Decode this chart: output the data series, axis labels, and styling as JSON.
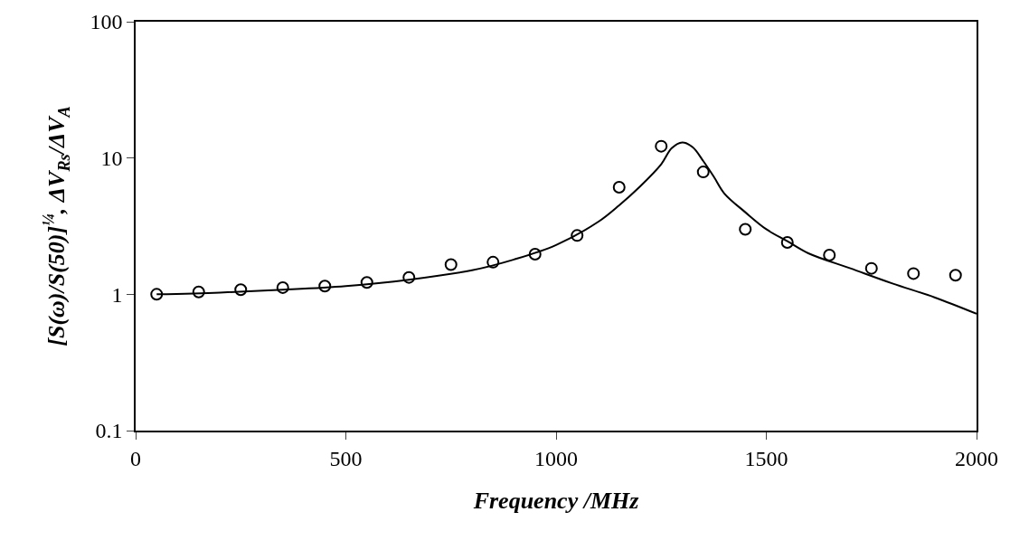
{
  "chart_data": {
    "type": "scatter",
    "xlabel": "Frequency /MHz",
    "ylabel": "[S(ω)/S(50)]$^{¼}$, ΔV$_{Rs}$/ΔV$_{A}$",
    "log": "y",
    "xlim": [
      0,
      2000
    ],
    "xticks": [
      0,
      500,
      1000,
      1500,
      2000
    ],
    "ylim": [
      0.1,
      100
    ],
    "yticks": [
      0.1,
      1,
      10,
      100
    ],
    "grid": false,
    "legend": false,
    "x": [
      50,
      150,
      250,
      350,
      450,
      550,
      650,
      750,
      850,
      950,
      1050,
      1150,
      1250,
      1350,
      1450,
      1550,
      1650,
      1750,
      1850,
      1950
    ],
    "series": [
      {
        "color": "#000000",
        "marker": "circle",
        "values": [
          1.0,
          1.04,
          1.08,
          1.12,
          1.15,
          1.22,
          1.33,
          1.65,
          1.72,
          1.97,
          2.7,
          6.1,
          12.2,
          7.9,
          3.0,
          2.4,
          1.94,
          1.55,
          1.42,
          1.38
        ]
      },
      {
        "type": "line",
        "color": "#000000",
        "marker": "none",
        "line_style": "solid",
        "x": [
          50,
          200,
          350,
          500,
          650,
          800,
          900,
          1000,
          1100,
          1150,
          1200,
          1250,
          1275,
          1300,
          1325,
          1350,
          1375,
          1400,
          1450,
          1500,
          1550,
          1600,
          1700,
          1800,
          1900,
          2000
        ],
        "values": [
          1.0,
          1.03,
          1.08,
          1.15,
          1.28,
          1.5,
          1.8,
          2.3,
          3.4,
          4.5,
          6.2,
          9.0,
          11.8,
          13.0,
          12.0,
          9.5,
          7.3,
          5.5,
          4.0,
          3.0,
          2.45,
          2.0,
          1.55,
          1.2,
          0.95,
          0.72
        ]
      }
    ]
  }
}
